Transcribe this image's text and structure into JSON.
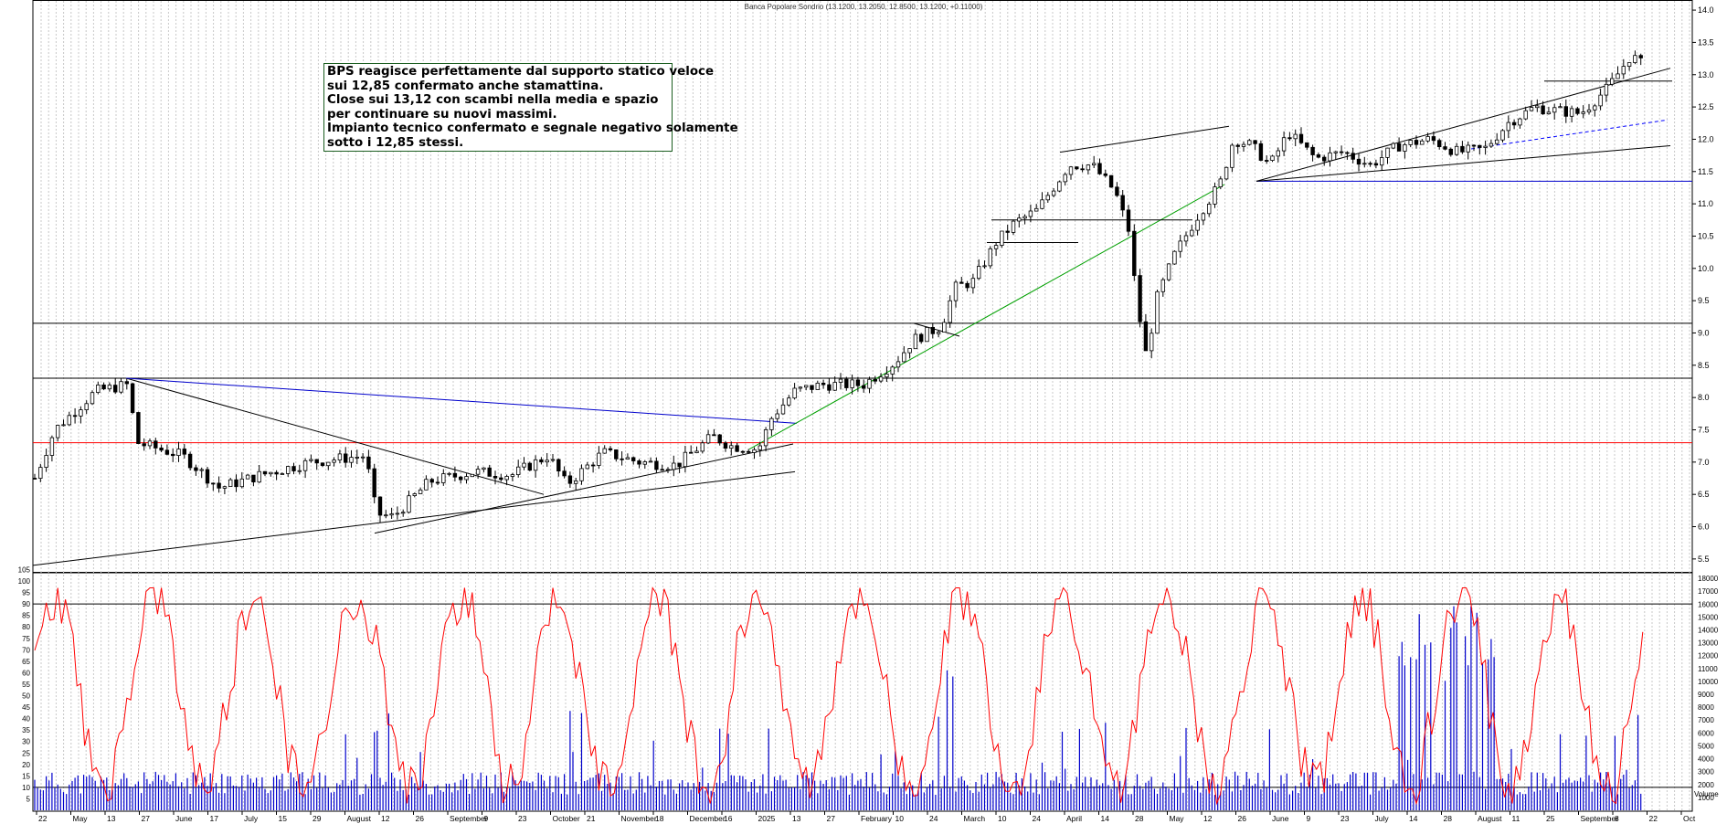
{
  "chart_data": {
    "type": "candlestick",
    "title": "Banca Popolare Sondrio (13.1200, 13.2050, 12.8500, 13.1200, +0.11000)",
    "annotation": [
      "BPS reagisce perfettamente dal supporto statico veloce",
      "sui 12,85 confermato anche stamattina.",
      "Close sui 13,12 con scambi nella media e spazio",
      "per continuare su nuovi massimi.",
      "Impianto tecnico confermato e segnale negativo solamente",
      "sotto i 12,85 stessi."
    ],
    "price_axis": {
      "range": [
        5.3,
        14.1
      ],
      "ticks": [
        "5.5",
        "6.0",
        "6.5",
        "7.0",
        "7.5",
        "8.0",
        "8.5",
        "9.0",
        "9.5",
        "10.0",
        "10.5",
        "11.0",
        "11.5",
        "12.0",
        "12.5",
        "13.0",
        "13.5",
        "14.0"
      ]
    },
    "oscillator_axis": {
      "range": [
        0,
        105
      ],
      "ticks": [
        "5",
        "10",
        "15",
        "20",
        "25",
        "30",
        "35",
        "40",
        "45",
        "50",
        "55",
        "60",
        "65",
        "70",
        "75",
        "80",
        "85",
        "90",
        "95",
        "100",
        "105"
      ]
    },
    "volume_axis": {
      "range": [
        0,
        18500
      ],
      "label": "Volume",
      "ticks": [
        "1000",
        "2000",
        "3000",
        "4000",
        "5000",
        "6000",
        "7000",
        "8000",
        "9000",
        "10000",
        "11000",
        "12000",
        "13000",
        "14000",
        "15000",
        "16000",
        "17000",
        "18000"
      ]
    },
    "date_labels": [
      "22",
      "May",
      "13",
      "27",
      "June",
      "17",
      "July",
      "15",
      "29",
      "August",
      "12",
      "26",
      "September",
      "9",
      "23",
      "October",
      "21",
      "November",
      "18",
      "December",
      "16",
      "2025",
      "13",
      "27",
      "February",
      "10",
      "24",
      "March",
      "10",
      "24",
      "April",
      "14",
      "28",
      "May",
      "12",
      "26",
      "June",
      "9",
      "23",
      "July",
      "14",
      "28",
      "August",
      "11",
      "25",
      "September",
      "8",
      "22",
      "Oct"
    ],
    "horizontal_levels": [
      {
        "price": 7.3,
        "color": "#ff0000"
      },
      {
        "price": 8.3,
        "color": "#000000"
      },
      {
        "price": 9.15,
        "color": "#000000"
      },
      {
        "price": 11.35,
        "color": "#0000cc"
      }
    ],
    "oscillator_levels": [
      90,
      10
    ],
    "colors": {
      "candle": "#000000",
      "oscillator": "#ff0000",
      "volume": "#0000cc",
      "trend_green": "#00a000",
      "trend_blue": "#0000cc",
      "dashed_blue": "#0000ff",
      "grid": "#c8c8c8"
    },
    "grid": true
  }
}
